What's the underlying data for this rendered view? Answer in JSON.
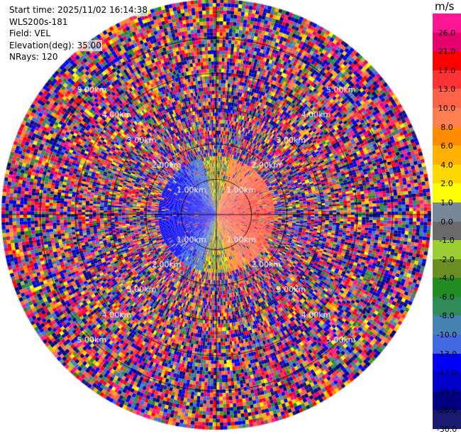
{
  "header": {
    "start_time": "Start time: 2025/11/02 16:14:38",
    "station": "WLS200s-181",
    "field": "Field: VEL",
    "elevation": "Elevation(deg): 35.00",
    "nrays": "NRays: 120"
  },
  "colorbar": {
    "unit": "m/s",
    "ticks": [
      "26.0",
      "21.0",
      "17.0",
      "13.0",
      "10.0",
      "8.0",
      "6.0",
      "4.0",
      "2.0",
      "1.0",
      "0.0",
      "-1.0",
      "-2.0",
      "-4.0",
      "-6.0",
      "-8.0",
      "-10.0",
      "-13.0",
      "-17.0",
      "-21.0",
      "-26.0",
      "-30.0"
    ],
    "colors": [
      "#ff1493",
      "#e6006e",
      "#ff0000",
      "#ff3333",
      "#ff6347",
      "#ff7f50",
      "#ff8c00",
      "#ffb000",
      "#ffd700",
      "#ffff00",
      "#778899",
      "#696969",
      "#9acd32",
      "#6b8e23",
      "#228b22",
      "#2e8b57",
      "#4682b4",
      "#4169e1",
      "#0000ff",
      "#0000cd",
      "#000080",
      "#191970"
    ]
  },
  "chart_data": {
    "type": "ppi",
    "title": "",
    "field": "VEL",
    "unit": "m/s",
    "elevation_deg": 35.0,
    "nrays": 120,
    "range_rings_km": [
      1.0,
      2.0,
      3.0,
      4.0,
      5.0
    ],
    "range_ring_labels": [
      "1.00km",
      "2.00km",
      "3.00km",
      "4.00km",
      "5.00km"
    ],
    "max_range_km": 5.0,
    "colorscale_ms": [
      -30,
      -26,
      -21,
      -17,
      -13,
      -10,
      -8,
      -6,
      -4,
      -2,
      -1,
      0,
      1,
      2,
      4,
      6,
      8,
      10,
      13,
      17,
      21,
      26
    ],
    "pattern": {
      "inner_valid_range_km": 2.0,
      "approaching_sector": "west (negative velocities about -10 to -17 m/s)",
      "receding_sector": "east (positive velocities about +8 to +13 m/s)",
      "beyond_valid_range": "noise across full scale"
    }
  }
}
